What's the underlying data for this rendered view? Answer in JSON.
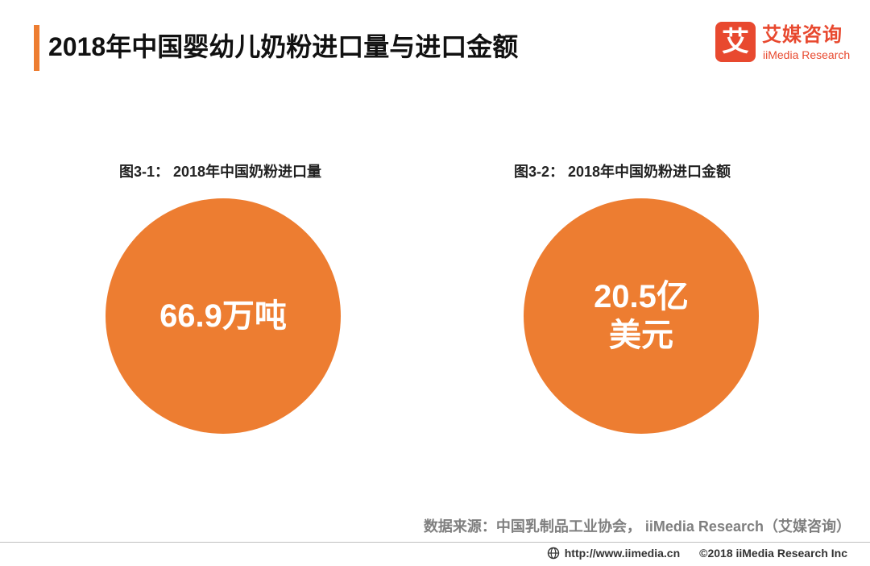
{
  "header": {
    "title": "2018年中国婴幼儿奶粉进口量与进口金额",
    "accent_color": "#ed7d31"
  },
  "logo": {
    "mark": "艾",
    "name_cn": "艾媒咨询",
    "name_en": "iiMedia Research",
    "color": "#e8492f"
  },
  "figures": [
    {
      "caption": "图3-1： 2018年中国奶粉进口量",
      "value_lines": [
        "66.9万吨"
      ]
    },
    {
      "caption": "图3-2： 2018年中国奶粉进口金额",
      "value_lines": [
        "20.5亿",
        "美元"
      ]
    }
  ],
  "source": {
    "text": "数据来源：中国乳制品工业协会， iiMedia Research（艾媒咨询）"
  },
  "footer": {
    "icon": "globe-icon",
    "url": "http://www.iimedia.cn",
    "copyright": "©2018  iiMedia Research  Inc"
  }
}
